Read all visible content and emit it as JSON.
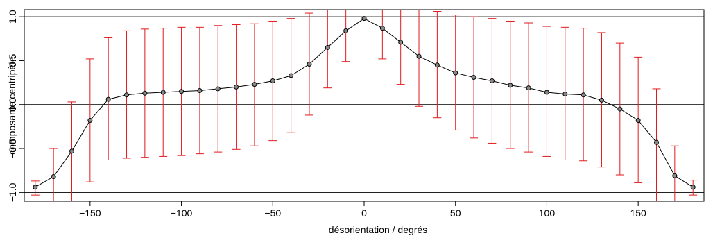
{
  "chart_data": {
    "type": "scatter",
    "title": "",
    "xlabel": "désorientation / degrés",
    "ylabel": "composante centripète",
    "xlim": [
      -186,
      186
    ],
    "ylim": [
      -1.1,
      1.08
    ],
    "x_ticks": [
      -150,
      -100,
      -50,
      0,
      50,
      100,
      150
    ],
    "x_tick_labels": [
      "−150",
      "−100",
      "−50",
      "0",
      "50",
      "100",
      "150"
    ],
    "y_ticks": [
      -1.0,
      -0.5,
      0.0,
      0.5,
      1.0
    ],
    "y_tick_labels": [
      "−1.0",
      "−0.5",
      "0.0",
      "0.5",
      "1.0"
    ],
    "reference_lines_y": [
      -1.0,
      0.0,
      1.0
    ],
    "grid": false,
    "colors": {
      "points": "#000000",
      "line": "#000000",
      "error_bars": "#e31a1c",
      "point_fill": "#888888"
    },
    "series": [
      {
        "x": [
          -180,
          -170,
          -160,
          -150,
          -140,
          -130,
          -120,
          -110,
          -100,
          -90,
          -80,
          -70,
          -60,
          -50,
          -40,
          -30,
          -20,
          -10,
          0,
          10,
          20,
          30,
          40,
          50,
          60,
          70,
          80,
          90,
          100,
          110,
          120,
          130,
          140,
          150,
          160,
          170,
          180
        ],
        "y": [
          -0.94,
          -0.82,
          -0.53,
          -0.18,
          0.06,
          0.11,
          0.13,
          0.14,
          0.15,
          0.16,
          0.18,
          0.2,
          0.23,
          0.27,
          0.33,
          0.46,
          0.65,
          0.84,
          0.98,
          0.87,
          0.71,
          0.55,
          0.45,
          0.36,
          0.31,
          0.27,
          0.22,
          0.19,
          0.14,
          0.12,
          0.11,
          0.05,
          -0.05,
          -0.18,
          -0.43,
          -0.81,
          -0.94
        ],
        "y_lower": [
          -1.03,
          -1.1,
          -1.1,
          -0.88,
          -0.63,
          -0.61,
          -0.6,
          -0.59,
          -0.58,
          -0.56,
          -0.54,
          -0.51,
          -0.47,
          -0.41,
          -0.32,
          -0.12,
          0.19,
          0.49,
          1.08,
          0.52,
          0.23,
          -0.02,
          -0.15,
          -0.29,
          -0.38,
          -0.44,
          -0.5,
          -0.54,
          -0.59,
          -0.63,
          -0.64,
          -0.71,
          -0.8,
          -0.89,
          -1.1,
          -1.1,
          -1.03
        ],
        "y_upper": [
          -0.87,
          -0.5,
          0.03,
          0.52,
          0.76,
          0.84,
          0.86,
          0.87,
          0.88,
          0.88,
          0.9,
          0.91,
          0.92,
          0.95,
          0.98,
          1.04,
          1.08,
          1.08,
          1.08,
          1.08,
          1.08,
          1.08,
          1.06,
          1.02,
          1.0,
          0.98,
          0.95,
          0.93,
          0.89,
          0.88,
          0.87,
          0.82,
          0.7,
          0.54,
          0.18,
          -0.47,
          -0.86
        ]
      }
    ]
  }
}
